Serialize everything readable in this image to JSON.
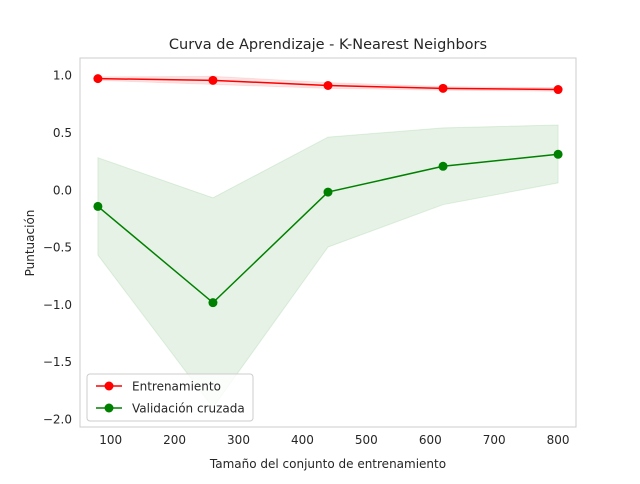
{
  "chart_data": {
    "type": "line",
    "title": "Curva de Aprendizaje - K-Nearest Neighbors",
    "xlabel": "Tamaño del conjunto de entrenamiento",
    "ylabel": "Puntuación",
    "xlim": [
      52,
      828
    ],
    "ylim": [
      -2.07,
      1.15
    ],
    "xticks": [
      100,
      200,
      300,
      400,
      500,
      600,
      700,
      800
    ],
    "yticks": [
      1.0,
      0.5,
      0.0,
      -0.5,
      -1.0,
      -1.5,
      -2.0
    ],
    "ytick_labels": [
      "1.0",
      "0.5",
      "0.0",
      "−0.5",
      "−1.0",
      "−1.5",
      "−2.0"
    ],
    "grid": false,
    "legend_position": "lower-left",
    "x": [
      80,
      260,
      440,
      620,
      800
    ],
    "series": [
      {
        "name": "Entrenamiento",
        "color": "#ff0000",
        "band_color": "#ff0000",
        "band_opacity": 0.1,
        "values": [
          0.97,
          0.955,
          0.91,
          0.885,
          0.875
        ],
        "upper": [
          0.985,
          0.99,
          0.935,
          0.9,
          0.89
        ],
        "lower": [
          0.955,
          0.92,
          0.885,
          0.87,
          0.86
        ]
      },
      {
        "name": "Validación cruzada",
        "color": "#008000",
        "band_color": "#008000",
        "band_opacity": 0.1,
        "values": [
          -0.145,
          -0.985,
          -0.02,
          0.205,
          0.31
        ],
        "upper": [
          0.28,
          -0.07,
          0.46,
          0.54,
          0.565
        ],
        "lower": [
          -0.57,
          -1.9,
          -0.5,
          -0.13,
          0.06
        ]
      }
    ]
  }
}
